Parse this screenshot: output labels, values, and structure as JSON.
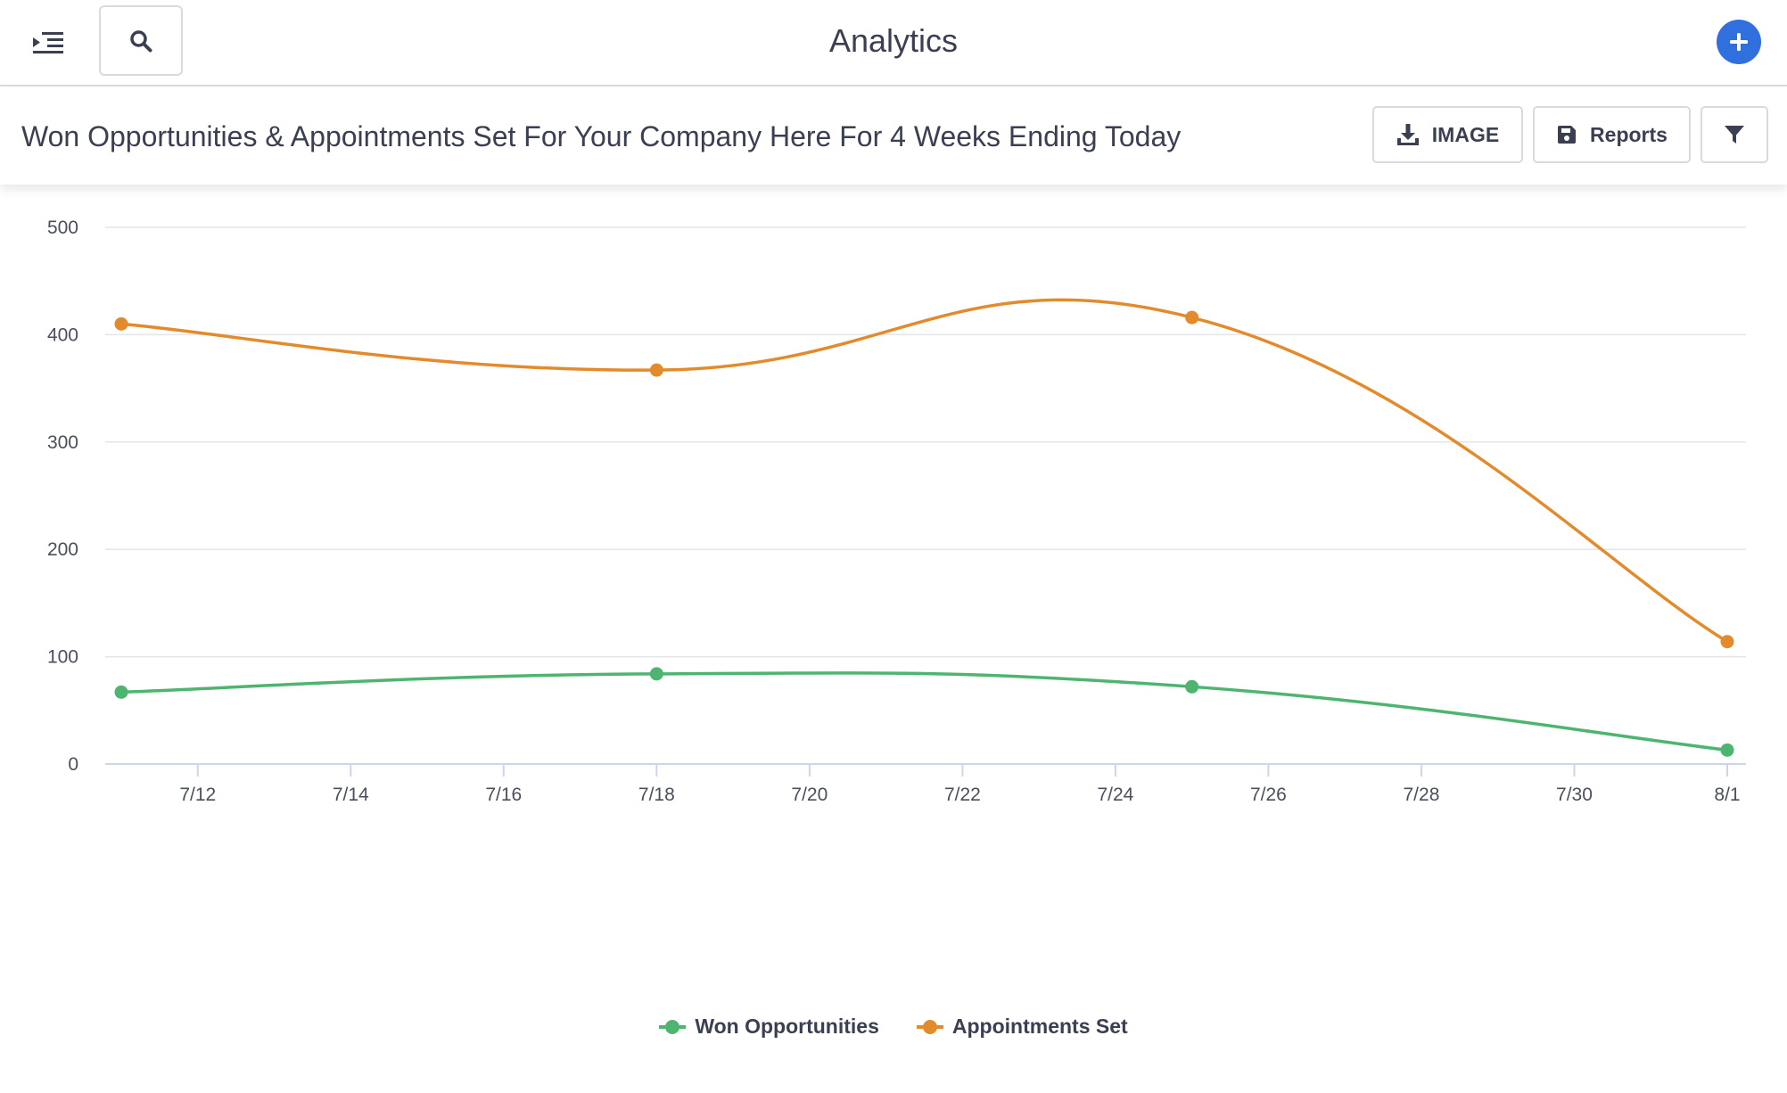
{
  "header": {
    "title": "Analytics",
    "icons": {
      "menu": "indent-menu-icon",
      "search": "search-icon",
      "add": "plus-icon"
    },
    "accent_color": "#2f6fde"
  },
  "report": {
    "title": "Won Opportunities & Appointments Set For Your Company Here For 4 Weeks Ending Today",
    "buttons": {
      "image_label": "IMAGE",
      "reports_label": "Reports"
    },
    "icons": {
      "image": "download-icon",
      "reports": "save-icon",
      "filter": "filter-icon"
    }
  },
  "chart_data": {
    "type": "line",
    "title": "",
    "xlabel": "",
    "ylabel": "",
    "ylim": [
      0,
      500
    ],
    "y_ticks": [
      0,
      100,
      200,
      300,
      400,
      500
    ],
    "x_ticks": [
      "7/12",
      "7/14",
      "7/16",
      "7/18",
      "7/20",
      "7/22",
      "7/24",
      "7/26",
      "7/28",
      "7/30",
      "8/1"
    ],
    "x": [
      "7/11",
      "7/18",
      "7/25",
      "8/1"
    ],
    "grid": true,
    "legend_position": "bottom",
    "series": [
      {
        "name": "Won Opportunities",
        "color": "#4db56f",
        "values": [
          67,
          84,
          72,
          13
        ]
      },
      {
        "name": "Appointments Set",
        "color": "#e38b2c",
        "values": [
          410,
          367,
          416,
          114
        ]
      }
    ]
  }
}
